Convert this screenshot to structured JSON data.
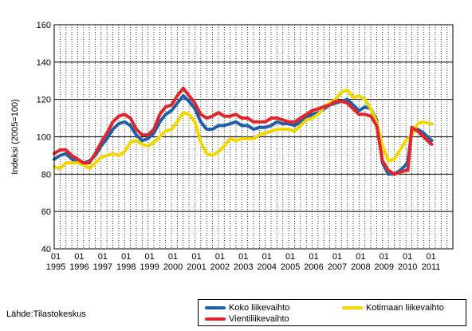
{
  "source_note": "Lähde:Tilastokeskus",
  "legend": {
    "items": [
      {
        "label": "Koko liikevaihto",
        "color": "#1f5fa8"
      },
      {
        "label": "Kotimaan liikevaihto",
        "color": "#f2d600"
      },
      {
        "label": "Vientiliikevaihto",
        "color": "#e0262b"
      }
    ]
  },
  "chart_data": {
    "type": "line",
    "ylabel": "Indeksi (2005=100)",
    "ylim": [
      40,
      160
    ],
    "yticks": [
      40,
      60,
      80,
      100,
      120,
      140,
      160
    ],
    "x_tick_top": "01",
    "x_tick_years": [
      "1995",
      "1996",
      "1997",
      "1998",
      "1999",
      "2000",
      "2001",
      "2002",
      "2003",
      "2004",
      "2005",
      "2006",
      "2007",
      "2008",
      "2009",
      "2010",
      "2011"
    ],
    "xlim": [
      1995.0,
      2012.0
    ],
    "grid": {
      "horizontal": true,
      "vertical_dotted": true
    },
    "legend_position": "bottom-right",
    "series": [
      {
        "name": "Koko liikevaihto",
        "color": "#1f5fa8",
        "x": [
          1995.0,
          1995.25,
          1995.5,
          1995.75,
          1996.0,
          1996.25,
          1996.5,
          1996.75,
          1997.0,
          1997.25,
          1997.5,
          1997.75,
          1998.0,
          1998.25,
          1998.5,
          1998.75,
          1999.0,
          1999.25,
          1999.5,
          1999.75,
          2000.0,
          2000.25,
          2000.5,
          2000.75,
          2001.0,
          2001.25,
          2001.5,
          2001.75,
          2002.0,
          2002.25,
          2002.5,
          2002.75,
          2003.0,
          2003.25,
          2003.5,
          2003.75,
          2004.0,
          2004.25,
          2004.5,
          2004.75,
          2005.0,
          2005.25,
          2005.5,
          2005.75,
          2006.0,
          2006.25,
          2006.5,
          2006.75,
          2007.0,
          2007.25,
          2007.5,
          2007.75,
          2008.0,
          2008.25,
          2008.5,
          2008.75,
          2009.0,
          2009.25,
          2009.5,
          2009.75,
          2010.0,
          2010.08,
          2010.25,
          2010.5,
          2010.75,
          2011.0,
          2011.1
        ],
        "values": [
          88,
          90,
          91,
          88,
          86,
          86,
          87,
          90,
          95,
          99,
          104,
          107,
          108,
          106,
          101,
          98,
          99,
          102,
          108,
          112,
          114,
          118,
          122,
          119,
          115,
          108,
          104,
          104,
          106,
          106,
          107,
          108,
          106,
          106,
          104,
          105,
          105,
          106,
          108,
          107,
          107,
          106,
          108,
          110,
          112,
          113,
          115,
          117,
          118,
          119,
          120,
          117,
          114,
          116,
          115,
          109,
          86,
          80,
          80,
          82,
          85,
          87,
          103,
          104,
          102,
          99,
          98
        ]
      },
      {
        "name": "Kotimaan liikevaihto",
        "color": "#f2d600",
        "x": [
          1995.0,
          1995.25,
          1995.5,
          1995.75,
          1996.0,
          1996.25,
          1996.5,
          1996.75,
          1997.0,
          1997.25,
          1997.5,
          1997.75,
          1998.0,
          1998.25,
          1998.5,
          1998.75,
          1999.0,
          1999.25,
          1999.5,
          1999.75,
          2000.0,
          2000.25,
          2000.5,
          2000.75,
          2001.0,
          2001.25,
          2001.5,
          2001.75,
          2002.0,
          2002.25,
          2002.5,
          2002.75,
          2003.0,
          2003.25,
          2003.5,
          2003.75,
          2004.0,
          2004.25,
          2004.5,
          2004.75,
          2005.0,
          2005.25,
          2005.5,
          2005.75,
          2006.0,
          2006.25,
          2006.5,
          2006.75,
          2007.0,
          2007.25,
          2007.5,
          2007.75,
          2008.0,
          2008.25,
          2008.5,
          2008.75,
          2009.0,
          2009.25,
          2009.5,
          2009.75,
          2010.0,
          2010.25,
          2010.5,
          2010.75,
          2011.0,
          2011.1
        ],
        "values": [
          84,
          83,
          86,
          86,
          86,
          85,
          83,
          86,
          89,
          90,
          91,
          90,
          92,
          97,
          98,
          96,
          95,
          97,
          100,
          103,
          104,
          108,
          113,
          112,
          108,
          97,
          91,
          90,
          92,
          95,
          99,
          98,
          99,
          99,
          99,
          101,
          102,
          103,
          104,
          104,
          104,
          103,
          106,
          109,
          110,
          112,
          116,
          118,
          120,
          124,
          125,
          121,
          122,
          120,
          115,
          108,
          95,
          87,
          88,
          93,
          98,
          101,
          107,
          108,
          107,
          107
        ]
      },
      {
        "name": "Vientiliikevaihto",
        "color": "#e0262b",
        "x": [
          1995.0,
          1995.25,
          1995.5,
          1995.75,
          1996.0,
          1996.25,
          1996.5,
          1996.75,
          1997.0,
          1997.25,
          1997.5,
          1997.75,
          1998.0,
          1998.25,
          1998.5,
          1998.75,
          1999.0,
          1999.25,
          1999.5,
          1999.75,
          2000.0,
          2000.25,
          2000.5,
          2000.75,
          2001.0,
          2001.25,
          2001.5,
          2001.75,
          2002.0,
          2002.25,
          2002.5,
          2002.75,
          2003.0,
          2003.25,
          2003.5,
          2003.75,
          2004.0,
          2004.25,
          2004.5,
          2004.75,
          2005.0,
          2005.25,
          2005.5,
          2005.75,
          2006.0,
          2006.25,
          2006.5,
          2006.75,
          2007.0,
          2007.25,
          2007.5,
          2007.75,
          2008.0,
          2008.25,
          2008.5,
          2008.75,
          2009.0,
          2009.25,
          2009.5,
          2009.75,
          2010.0,
          2010.08,
          2010.25,
          2010.5,
          2010.75,
          2011.0,
          2011.1
        ],
        "values": [
          91,
          93,
          93,
          90,
          88,
          86,
          86,
          91,
          97,
          102,
          108,
          111,
          112,
          110,
          104,
          101,
          101,
          104,
          112,
          116,
          117,
          122,
          126,
          122,
          118,
          112,
          110,
          111,
          113,
          111,
          111,
          112,
          110,
          110,
          108,
          108,
          108,
          110,
          110,
          109,
          108,
          108,
          110,
          112,
          114,
          115,
          116,
          117,
          119,
          119,
          118,
          115,
          112,
          112,
          111,
          106,
          87,
          82,
          80,
          81,
          82,
          82,
          105,
          103,
          100,
          97,
          96
        ]
      }
    ]
  }
}
